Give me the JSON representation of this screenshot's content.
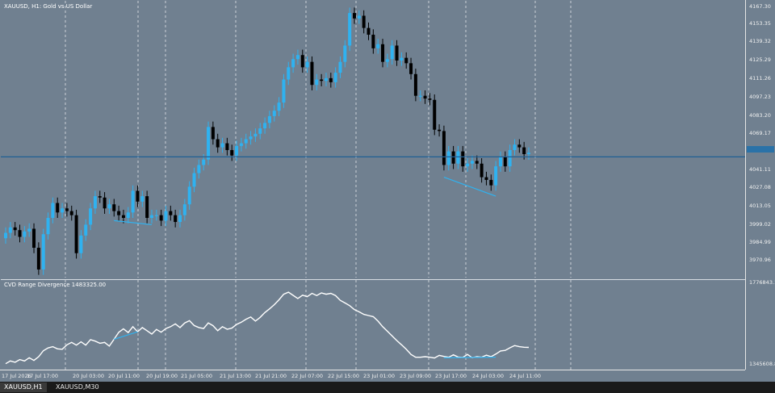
{
  "chart_title": "XAUUSD, H1:  Gold vs US Dollar",
  "indicator_title": "CVD Range Divergence 1483325.00",
  "price_axis_labels": [
    "4167.30",
    "4153.35",
    "4139.32",
    "4125.29",
    "4111.26",
    "4097.23",
    "4083.20",
    "4069.17",
    "4041.11",
    "4027.08",
    "4013.05",
    "3999.02",
    "3984.99",
    "3970.96"
  ],
  "indicator_axis_labels": [
    "1776843.16",
    "1345608.84"
  ],
  "time_labels": [
    "17 Jul 2026",
    "17 Jul 17:00",
    "20 Jul 03:00",
    "20 Jul 11:00",
    "20 Jul 19:00",
    "21 Jul 05:00",
    "21 Jul 13:00",
    "21 Jul 21:00",
    "22 Jul 07:00",
    "22 Jul 15:00",
    "23 Jul 01:00",
    "23 Jul 09:00",
    "23 Jul 17:00",
    "24 Jul 03:00",
    "24 Jul 11:00"
  ],
  "tabs": [
    "XAUUSD,H1",
    "XAUUSD,M30"
  ],
  "colors": {
    "background": "#708090",
    "bull": "#2fb2f0",
    "bear": "#000000",
    "bid_line": "#1f5f94",
    "divergence": "#2fb2f0",
    "cvd_line": "#ffffff",
    "grid": "#ffffff"
  },
  "chart_data": [
    {
      "type": "candlestick",
      "title": "XAUUSD, H1:  Gold vs US Dollar",
      "ylim": [
        3966,
        4170
      ],
      "bid_price": 4055,
      "closes": [
        3999,
        4003,
        4001,
        3996,
        4000,
        4002,
        3988,
        3972,
        3998,
        4010,
        4021,
        4014,
        4017,
        4015,
        4012,
        3984,
        3997,
        4005,
        4017,
        4026,
        4025,
        4017,
        4020,
        4015,
        4012,
        4010,
        4014,
        4030,
        4022,
        4026,
        4010,
        4012,
        4012,
        4008,
        4015,
        4012,
        4007,
        4012,
        4020,
        4033,
        4043,
        4049,
        4053,
        4077,
        4068,
        4062,
        4065,
        4060,
        4056,
        4063,
        4065,
        4068,
        4070,
        4072,
        4076,
        4080,
        4085,
        4089,
        4095,
        4112,
        4121,
        4127,
        4130,
        4121,
        4125,
        4108,
        4112,
        4111,
        4113,
        4110,
        4117,
        4125,
        4137,
        4161,
        4157,
        4159,
        4150,
        4145,
        4135,
        4138,
        4125,
        4127,
        4137,
        4126,
        4128,
        4124,
        4116,
        4100,
        4100,
        4098,
        4097,
        4075,
        4074,
        4049,
        4059,
        4050,
        4059,
        4048,
        4050,
        4052,
        4050,
        4040,
        4038,
        4034,
        4048,
        4055,
        4048,
        4060,
        4064,
        4062,
        4057,
        4058
      ]
    },
    {
      "type": "line",
      "title": "CVD Range Divergence 1483325.00",
      "ylim": [
        1345608.84,
        1776843.16
      ],
      "values": [
        1360000,
        1375000,
        1368000,
        1382000,
        1375000,
        1392000,
        1378000,
        1398000,
        1430000,
        1445000,
        1452000,
        1440000,
        1438000,
        1462000,
        1475000,
        1460000,
        1478000,
        1460000,
        1490000,
        1482000,
        1470000,
        1475000,
        1455000,
        1492000,
        1530000,
        1548000,
        1528000,
        1560000,
        1532000,
        1555000,
        1538000,
        1520000,
        1545000,
        1530000,
        1550000,
        1560000,
        1575000,
        1555000,
        1580000,
        1592000,
        1566000,
        1555000,
        1550000,
        1580000,
        1565000,
        1538000,
        1560000,
        1546000,
        1552000,
        1572000,
        1584000,
        1600000,
        1612000,
        1590000,
        1610000,
        1636000,
        1656000,
        1679000,
        1705000,
        1735000,
        1746000,
        1729000,
        1712000,
        1730000,
        1722000,
        1740000,
        1728000,
        1742000,
        1735000,
        1740000,
        1728000,
        1702000,
        1688000,
        1673000,
        1652000,
        1640000,
        1626000,
        1620000,
        1614000,
        1590000,
        1560000,
        1535000,
        1510000,
        1485000,
        1462000,
        1438000,
        1410000,
        1395000,
        1395000,
        1398000,
        1395000,
        1391000,
        1405000,
        1399000,
        1395000,
        1408000,
        1396000,
        1394000,
        1410000,
        1392000,
        1398000,
        1395000,
        1406000,
        1398000,
        1412000,
        1429000,
        1432000,
        1446000,
        1458000,
        1452000,
        1449000,
        1448000
      ]
    }
  ]
}
